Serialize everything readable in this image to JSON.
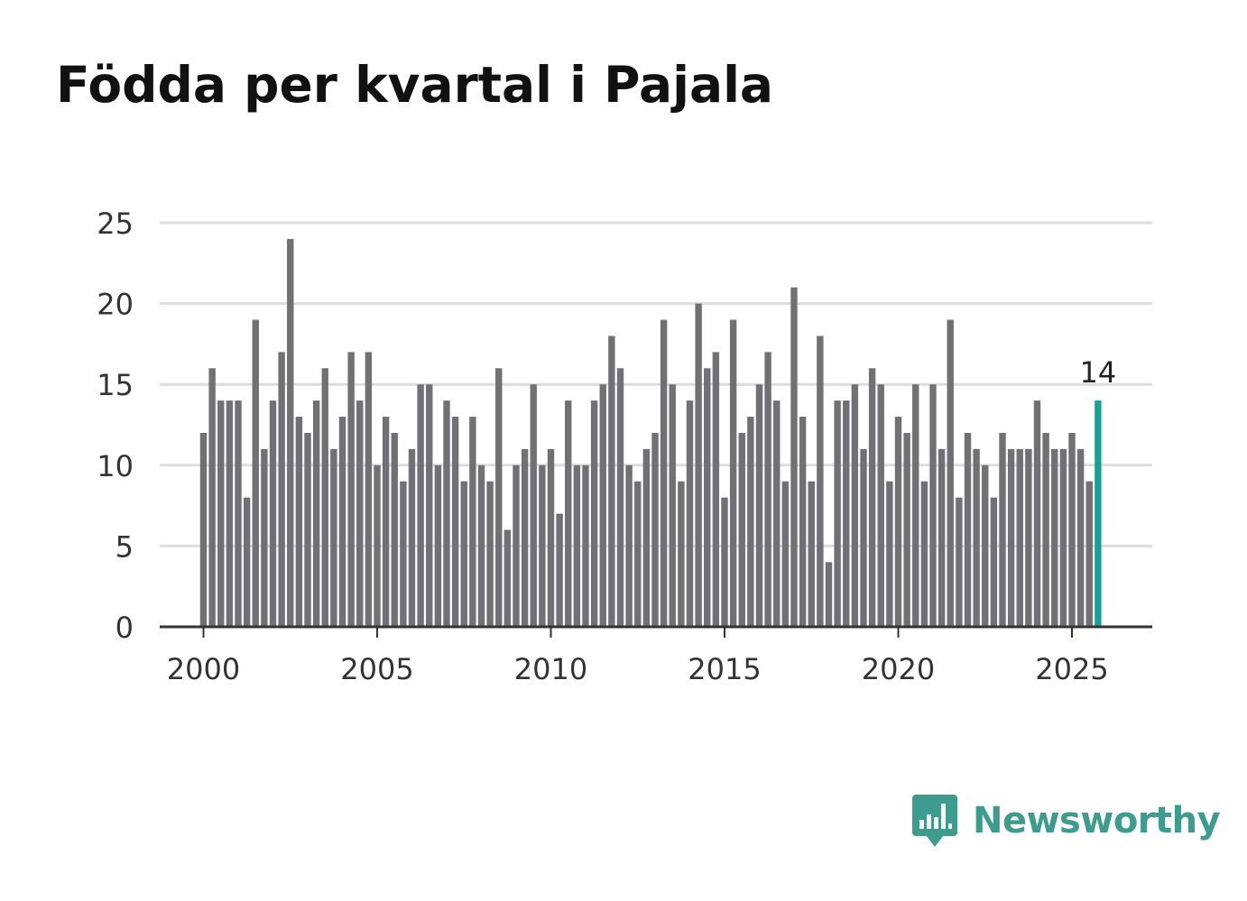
{
  "chart_data": {
    "type": "bar",
    "title": "Födda per kvartal i Pajala",
    "xlabel": "",
    "ylabel": "",
    "ylim": [
      0,
      25
    ],
    "xlim": [
      2000,
      2027.5
    ],
    "y_ticks": [
      "0",
      "5",
      "10",
      "15",
      "20",
      "25"
    ],
    "x_ticks": [
      "2000",
      "2005",
      "2010",
      "2015",
      "2020",
      "2025"
    ],
    "grid": true,
    "x_start": 2000,
    "period_step": 0.25,
    "values": [
      12,
      16,
      14,
      14,
      14,
      8,
      19,
      11,
      14,
      17,
      24,
      13,
      12,
      14,
      16,
      11,
      13,
      17,
      14,
      17,
      10,
      13,
      12,
      9,
      11,
      15,
      15,
      10,
      14,
      13,
      9,
      13,
      10,
      9,
      16,
      6,
      10,
      11,
      15,
      10,
      11,
      7,
      14,
      10,
      10,
      14,
      15,
      18,
      16,
      10,
      9,
      11,
      12,
      19,
      15,
      9,
      14,
      20,
      16,
      17,
      8,
      19,
      12,
      13,
      15,
      17,
      14,
      9,
      21,
      13,
      9,
      18,
      4,
      14,
      14,
      15,
      11,
      16,
      15,
      9,
      13,
      12,
      15,
      9,
      15,
      11,
      19,
      8,
      12,
      11,
      10,
      8,
      12,
      11,
      11,
      11,
      14,
      12,
      11,
      11,
      12,
      11,
      9,
      14
    ],
    "highlight_index": 103,
    "highlight_label": "14",
    "bar_color": "#717175",
    "highlight_color": "#16a394",
    "grid_color": "#dddddd",
    "axis_color": "#333333"
  },
  "brand": {
    "name": "Newsworthy",
    "color": "#3d9c8e",
    "icon": "newsworthy-logo-icon"
  }
}
